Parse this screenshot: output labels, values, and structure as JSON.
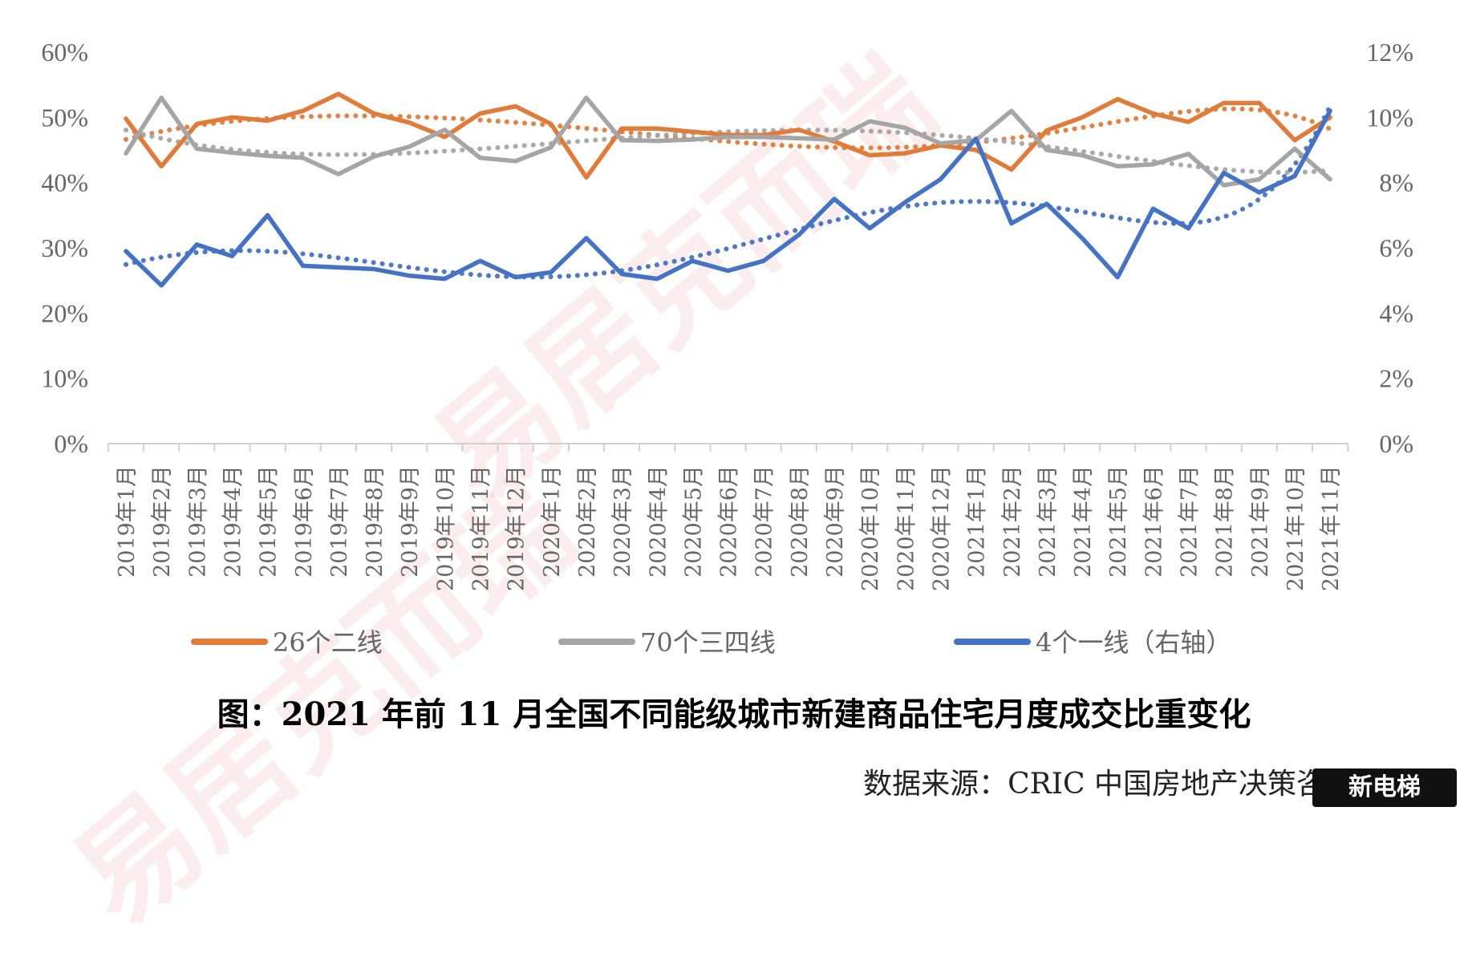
{
  "chart_data": {
    "type": "line",
    "categories": [
      "2019年1月",
      "2019年2月",
      "2019年3月",
      "2019年4月",
      "2019年5月",
      "2019年6月",
      "2019年7月",
      "2019年8月",
      "2019年9月",
      "2019年10月",
      "2019年11月",
      "2019年12月",
      "2020年1月",
      "2020年2月",
      "2020年3月",
      "2020年4月",
      "2020年5月",
      "2020年6月",
      "2020年7月",
      "2020年8月",
      "2020年9月",
      "2020年10月",
      "2020年11月",
      "2020年12月",
      "2021年1月",
      "2021年2月",
      "2021年3月",
      "2021年4月",
      "2021年5月",
      "2021年6月",
      "2021年7月",
      "2021年8月",
      "2021年9月",
      "2021年10月",
      "2021年11月"
    ],
    "y_left_ticks": [
      "0%",
      "10%",
      "20%",
      "30%",
      "40%",
      "50%",
      "60%"
    ],
    "y_right_ticks": [
      "0%",
      "2%",
      "4%",
      "6%",
      "8%",
      "10%",
      "12%"
    ],
    "ylim_left": [
      0,
      60
    ],
    "ylim_right": [
      0,
      12
    ],
    "legend_position": "bottom",
    "trendlines": "dotted polynomial trend line per series",
    "series": [
      {
        "name": "26个二线",
        "axis": "left",
        "color": "#E07B39",
        "values": [
          49.8,
          42.5,
          49.0,
          50.0,
          49.5,
          51.0,
          53.6,
          50.6,
          49.2,
          47.0,
          50.6,
          51.7,
          49.0,
          40.8,
          48.3,
          48.3,
          47.8,
          47.3,
          47.3,
          48.1,
          46.3,
          44.2,
          44.5,
          45.7,
          45.0,
          42.0,
          48.0,
          50.0,
          52.8,
          50.6,
          49.3,
          52.2,
          52.2,
          46.5,
          50.0
        ]
      },
      {
        "name": "70个三四线",
        "axis": "left",
        "color": "#A5A5A5",
        "values": [
          44.5,
          53.0,
          45.2,
          44.6,
          44.1,
          43.8,
          41.3,
          44.0,
          45.5,
          48.1,
          43.8,
          43.3,
          45.4,
          53.0,
          46.5,
          46.4,
          46.6,
          47.0,
          47.0,
          46.8,
          46.6,
          49.4,
          48.4,
          46.0,
          46.5,
          51.0,
          45.0,
          44.2,
          42.5,
          42.8,
          44.4,
          39.6,
          40.5,
          45.2,
          40.5
        ]
      },
      {
        "name": "4个一线（右轴）",
        "axis": "right",
        "color": "#4472C4",
        "values": [
          5.9,
          4.85,
          6.1,
          5.75,
          7.0,
          5.45,
          5.4,
          5.35,
          5.15,
          5.05,
          5.6,
          5.1,
          5.25,
          6.3,
          5.2,
          5.05,
          5.6,
          5.3,
          5.6,
          6.4,
          7.5,
          6.6,
          7.4,
          8.1,
          9.35,
          6.75,
          7.35,
          6.3,
          5.1,
          7.2,
          6.6,
          8.3,
          7.7,
          8.2,
          10.2
        ]
      }
    ]
  },
  "title": "图：2021 年前 11 月全国不同能级城市新建商品住宅月度成交比重变化",
  "source": "数据来源：CRIC 中国房地产决策咨询系统",
  "watermark": "新电梯"
}
